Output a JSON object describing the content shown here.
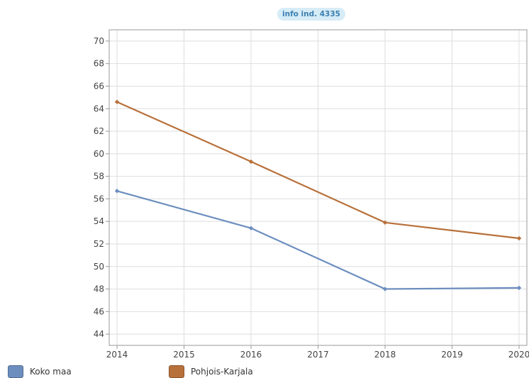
{
  "info_badge": {
    "label": "info ind. 4335"
  },
  "colors": {
    "koko_maa": "#6c8ebf",
    "pohjois_karjala": "#b8703a",
    "grid": "#dedede",
    "axis": "#999999"
  },
  "chart_data": {
    "type": "line",
    "title": "",
    "xlabel": "",
    "ylabel": "",
    "x": [
      2014,
      2016,
      2018,
      2020
    ],
    "xticks": [
      2014,
      2015,
      2016,
      2017,
      2018,
      2019,
      2020
    ],
    "xlim": [
      2014,
      2020
    ],
    "ylim": [
      43,
      71
    ],
    "yticks": [
      44,
      46,
      48,
      50,
      52,
      54,
      56,
      58,
      60,
      62,
      64,
      66,
      68,
      70
    ],
    "grid": true,
    "legend_position": "bottom-left",
    "series": [
      {
        "name": "Koko maa",
        "color": "#6c8ebf",
        "values": [
          56.7,
          53.4,
          48.0,
          48.1
        ]
      },
      {
        "name": "Pohjois-Karjala",
        "color": "#b8703a",
        "values": [
          64.6,
          59.3,
          53.9,
          52.5
        ]
      }
    ]
  },
  "legend": {
    "items": [
      {
        "label": "Koko maa",
        "color": "#6c8ebf"
      },
      {
        "label": "Pohjois-Karjala",
        "color": "#b8703a"
      }
    ]
  }
}
